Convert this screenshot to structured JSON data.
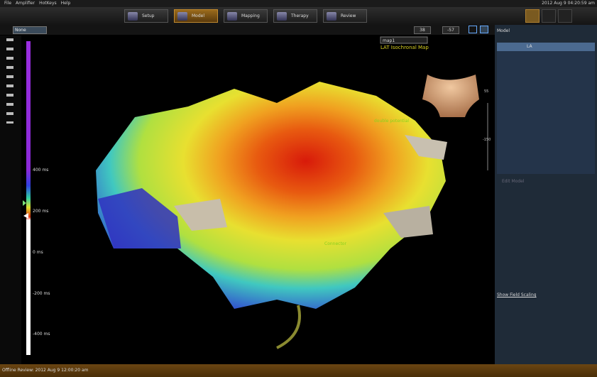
{
  "menu": [
    "File",
    "Amplifier",
    "HotKeys",
    "Help"
  ],
  "clock": "2012 Aug 9 04:20:59 am",
  "tabs": [
    "Setup",
    "Model",
    "Mapping",
    "Therapy",
    "Review"
  ],
  "toolbar": {
    "filter": "None",
    "rotation_a": 38,
    "rotation_b": -57
  },
  "view": {
    "map_name": "map1",
    "map_type": "LAT Isochronal Map",
    "annotations": [
      "double potential",
      "Connector"
    ]
  },
  "scale": {
    "labels": [
      "400 ms",
      "200 ms",
      "0 ms",
      "-200 ms",
      "-400 ms"
    ]
  },
  "side_slider": {
    "top": 55,
    "bottom": -150
  },
  "panel": {
    "title": "Model",
    "layers": [
      "LA"
    ],
    "edit": "Edit Model",
    "field_scaling": "Show Field Scaling"
  },
  "status": "Offline Review: 2012 Aug 9 12:00:20 am"
}
